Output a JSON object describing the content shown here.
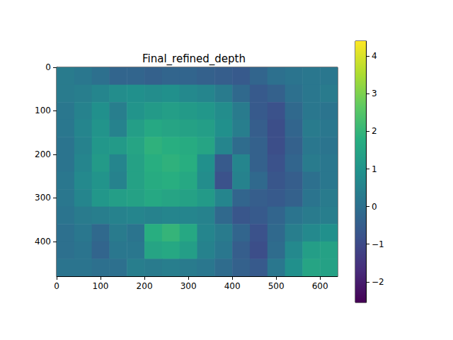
{
  "chart_data": {
    "type": "heatmap",
    "title": "Final_refined_depth",
    "xlim": [
      0,
      640
    ],
    "xticks": [
      0,
      100,
      200,
      300,
      400,
      500,
      600
    ],
    "ylim": [
      480,
      0
    ],
    "yticks": [
      0,
      100,
      200,
      300,
      400
    ],
    "grid": false,
    "cells": [
      [
        0.3,
        0.2,
        0.0,
        -0.3,
        -0.3,
        -0.4,
        -0.3,
        -0.3,
        -0.4,
        -0.5,
        -0.6,
        -0.3,
        0.0,
        0.1,
        0.2,
        0.2
      ],
      [
        0.3,
        0.4,
        0.6,
        0.8,
        0.9,
        0.8,
        0.9,
        0.7,
        0.6,
        0.3,
        -0.2,
        -0.6,
        -0.4,
        0.0,
        0.2,
        0.3
      ],
      [
        0.2,
        0.5,
        0.9,
        0.4,
        1.0,
        1.2,
        1.3,
        1.2,
        1.1,
        0.8,
        0.3,
        -0.6,
        -0.8,
        -0.2,
        0.2,
        0.1
      ],
      [
        0.2,
        0.6,
        1.0,
        0.5,
        1.3,
        1.6,
        1.5,
        1.4,
        1.3,
        0.9,
        0.4,
        -0.5,
        -0.9,
        -0.3,
        0.3,
        0.2
      ],
      [
        0.1,
        0.5,
        1.1,
        1.2,
        1.5,
        1.9,
        1.8,
        1.7,
        1.5,
        0.6,
        -0.1,
        -0.4,
        -0.9,
        -0.4,
        0.2,
        0.1
      ],
      [
        0.1,
        0.6,
        1.2,
        0.6,
        1.4,
        1.8,
        1.9,
        1.8,
        0.9,
        -0.6,
        0.6,
        -0.4,
        -0.8,
        -0.3,
        0.3,
        0.2
      ],
      [
        0.2,
        0.7,
        1.0,
        0.5,
        1.4,
        1.7,
        1.8,
        1.6,
        0.8,
        -0.8,
        0.5,
        -0.2,
        -0.7,
        -0.5,
        0.0,
        0.2
      ],
      [
        0.2,
        0.6,
        1.1,
        1.3,
        1.4,
        1.6,
        1.5,
        1.4,
        1.2,
        0.6,
        -0.3,
        -0.5,
        -0.6,
        -0.4,
        0.1,
        0.3
      ],
      [
        0.1,
        0.3,
        0.4,
        0.5,
        0.6,
        0.5,
        0.6,
        0.6,
        0.5,
        -0.2,
        -0.7,
        -0.6,
        -0.3,
        0.1,
        0.3,
        0.4
      ],
      [
        0.0,
        0.2,
        -0.2,
        0.3,
        0.1,
        1.8,
        2.0,
        1.6,
        0.6,
        0.3,
        -0.3,
        -0.8,
        -0.2,
        0.4,
        0.7,
        0.9
      ],
      [
        0.0,
        0.1,
        -0.3,
        0.2,
        0.2,
        1.5,
        1.6,
        1.3,
        0.5,
        0.2,
        -0.5,
        -0.9,
        -0.1,
        0.7,
        1.3,
        1.4
      ],
      [
        0.1,
        0.1,
        0.0,
        0.0,
        0.4,
        0.3,
        0.4,
        0.3,
        0.2,
        -0.1,
        -0.4,
        -0.6,
        0.2,
        0.9,
        1.5,
        1.4
      ]
    ],
    "colorbar": {
      "range": [
        -2.55,
        4.4
      ],
      "ticks": [
        {
          "value": -2,
          "label": "−2"
        },
        {
          "value": -1,
          "label": "−1"
        },
        0,
        1,
        2,
        3,
        4
      ]
    }
  }
}
